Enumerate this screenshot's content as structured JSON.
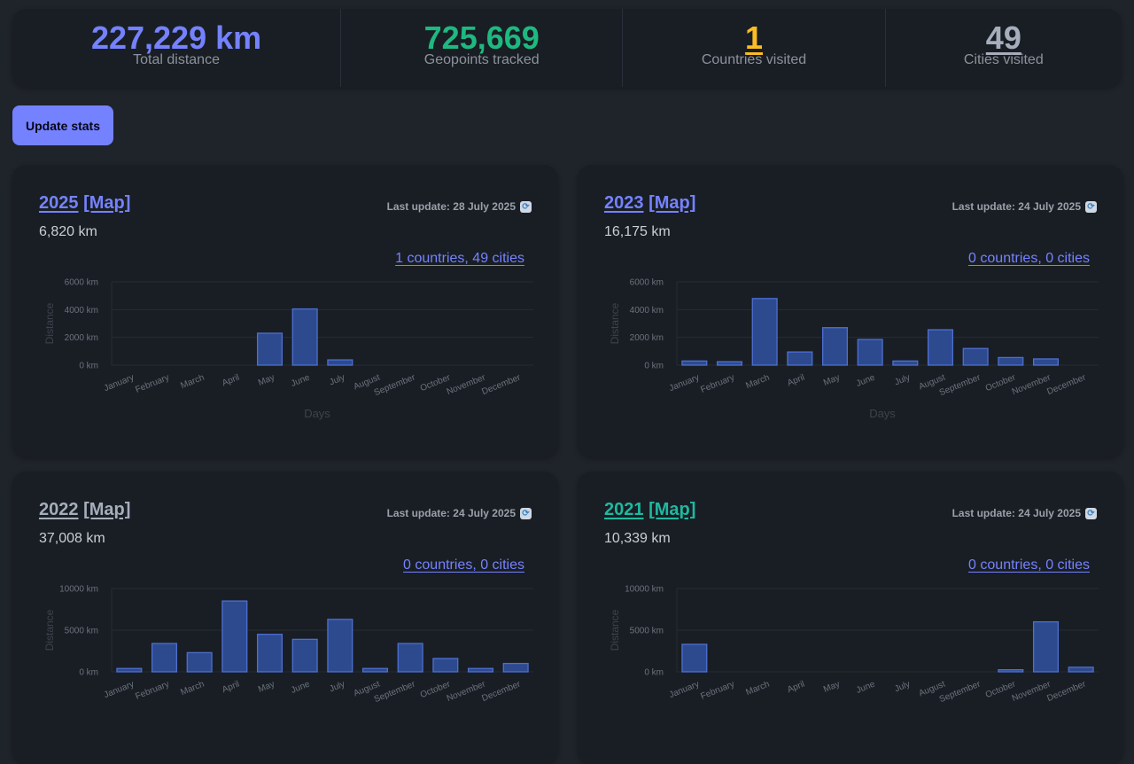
{
  "stats": [
    {
      "value": "227,229 km",
      "label": "Total distance",
      "color": "#7582ff",
      "underline": false
    },
    {
      "value": "725,669",
      "label": "Geopoints tracked",
      "color": "#1eb980",
      "underline": false
    },
    {
      "value": "1",
      "label": "Countries visited",
      "color": "#fbbd23",
      "underline": true
    },
    {
      "value": "49",
      "label": "Cities visited",
      "color": "#a6adbb",
      "underline": true
    }
  ],
  "update_button": {
    "label": "Update stats"
  },
  "months": [
    "January",
    "February",
    "March",
    "April",
    "May",
    "June",
    "July",
    "August",
    "September",
    "October",
    "November",
    "December"
  ],
  "colors": {
    "bar_fill": "#2d4a8f",
    "bar_stroke": "#4d6fd1",
    "accent": "#7582ff"
  },
  "cards": [
    {
      "year": "2025",
      "map": "[Map]",
      "title_color": "#7582ff",
      "last_update": "Last update: 28 July 2025",
      "distance": "6,820 km",
      "places_link": "1 countries, 49 cities"
    },
    {
      "year": "2023",
      "map": "[Map]",
      "title_color": "#7582ff",
      "last_update": "Last update: 24 July 2025",
      "distance": "16,175 km",
      "places_link": "0 countries, 0 cities"
    },
    {
      "year": "2022",
      "map": "[Map]",
      "title_color": "#a6adbb",
      "last_update": "Last update: 24 July 2025",
      "distance": "37,008 km",
      "places_link": "0 countries, 0 cities"
    },
    {
      "year": "2021",
      "map": "[Map]",
      "title_color": "#1eb9a0",
      "last_update": "Last update: 24 July 2025",
      "distance": "10,339 km",
      "places_link": "0 countries, 0 cities"
    }
  ],
  "chart_data": [
    {
      "type": "bar",
      "title": "",
      "categories": [
        "January",
        "February",
        "March",
        "April",
        "May",
        "June",
        "July",
        "August",
        "September",
        "October",
        "November",
        "December"
      ],
      "values": [
        0,
        0,
        0,
        0,
        2300,
        4050,
        380,
        0,
        0,
        0,
        0,
        0
      ],
      "xlabel": "Days",
      "ylabel": "Distance",
      "ylim": [
        0,
        6000
      ],
      "y_ticks": [
        "0 km",
        "2000 km",
        "4000 km",
        "6000 km"
      ]
    },
    {
      "type": "bar",
      "title": "",
      "categories": [
        "January",
        "February",
        "March",
        "April",
        "May",
        "June",
        "July",
        "August",
        "September",
        "October",
        "November",
        "December"
      ],
      "values": [
        300,
        250,
        4800,
        950,
        2700,
        1850,
        300,
        2550,
        1200,
        550,
        450,
        0
      ],
      "xlabel": "Days",
      "ylabel": "Distance",
      "ylim": [
        0,
        6000
      ],
      "y_ticks": [
        "0 km",
        "2000 km",
        "4000 km",
        "6000 km"
      ]
    },
    {
      "type": "bar",
      "title": "",
      "categories": [
        "January",
        "February",
        "March",
        "April",
        "May",
        "June",
        "July",
        "August",
        "September",
        "October",
        "November",
        "December"
      ],
      "values": [
        400,
        3400,
        2300,
        8500,
        4500,
        3900,
        6300,
        400,
        3400,
        1600,
        400,
        1000
      ],
      "xlabel": "",
      "ylabel": "Distance",
      "ylim": [
        0,
        10000
      ],
      "y_ticks": [
        "0 km",
        "5000 km",
        "10000 km"
      ]
    },
    {
      "type": "bar",
      "title": "",
      "categories": [
        "January",
        "February",
        "March",
        "April",
        "May",
        "June",
        "July",
        "August",
        "September",
        "October",
        "November",
        "December"
      ],
      "values": [
        3300,
        0,
        0,
        0,
        0,
        0,
        0,
        0,
        0,
        250,
        6000,
        550
      ],
      "xlabel": "",
      "ylabel": "Distance",
      "ylim": [
        0,
        10000
      ],
      "y_ticks": [
        "0 km",
        "5000 km",
        "10000 km"
      ]
    }
  ]
}
